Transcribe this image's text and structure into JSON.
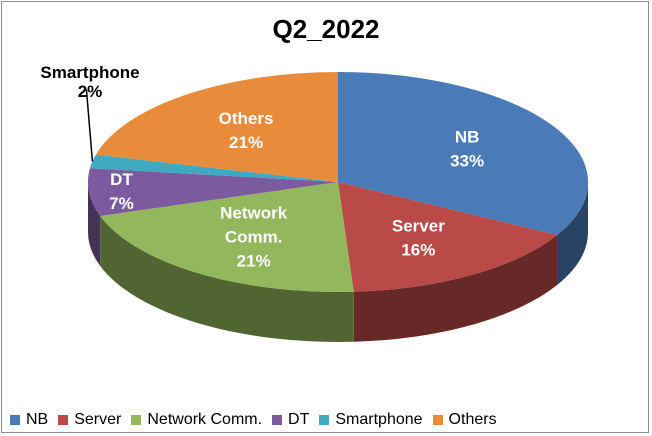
{
  "chart_data": {
    "type": "pie",
    "title": "Q2_2022",
    "categories": [
      "NB",
      "Server",
      "Network Comm.",
      "DT",
      "Smartphone",
      "Others"
    ],
    "values": [
      33,
      16,
      21,
      7,
      2,
      21
    ],
    "labels": [
      "33%",
      "16%",
      "21%",
      "7%",
      "2%",
      "21%"
    ],
    "colors": [
      "#4a7ab8",
      "#b94a48",
      "#93b75c",
      "#7c5a9e",
      "#3fa9c1",
      "#e88b3a"
    ],
    "legend_position": "bottom",
    "style": "3d"
  }
}
